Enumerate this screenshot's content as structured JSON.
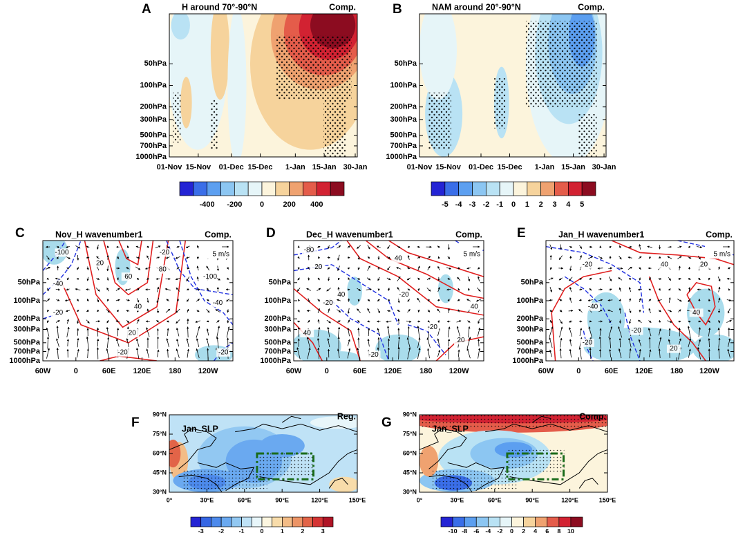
{
  "chart_data": [
    {
      "type": "contour",
      "panel": "A",
      "title": "H around 70°-90°N",
      "tag": "Comp.",
      "xlim": [
        0,
        91
      ],
      "xticks": [
        {
          "value": 0,
          "label": "01-Nov"
        },
        {
          "value": 14,
          "label": "15-Nov"
        },
        {
          "value": 30,
          "label": "01-Dec"
        },
        {
          "value": 44,
          "label": "15-Dec"
        },
        {
          "value": 61,
          "label": "1-Jan"
        },
        {
          "value": 75,
          "label": "15-Jan"
        },
        {
          "value": 90,
          "label": "30-Jan"
        }
      ],
      "ylim": [
        1000,
        10
      ],
      "log_y": true,
      "yticks": [
        {
          "value": 50,
          "label": "50hPa"
        },
        {
          "value": 100,
          "label": "100hPa"
        },
        {
          "value": 200,
          "label": "200hPa"
        },
        {
          "value": 300,
          "label": "300hPa"
        },
        {
          "value": 500,
          "label": "500hPa"
        },
        {
          "value": 700,
          "label": "700hPa"
        },
        {
          "value": 1000,
          "label": "1000hPa"
        }
      ],
      "colorbar": {
        "lim": [
          -600,
          600
        ],
        "ticks": [
          -400,
          -200,
          0,
          200,
          400
        ],
        "colors": [
          "#2424d4",
          "#3a6ee8",
          "#5c9ff0",
          "#8cc6f2",
          "#b9e2f4",
          "#e6f5f8",
          "#fcf4dc",
          "#f6d39c",
          "#efa270",
          "#e45c4a",
          "#d22232",
          "#8c0c20"
        ]
      }
    },
    {
      "type": "contour",
      "panel": "B",
      "title": "NAM around 20°-90°N",
      "tag": "Comp.",
      "xlim": [
        0,
        91
      ],
      "xticks": [
        {
          "value": 0,
          "label": "01-Nov"
        },
        {
          "value": 14,
          "label": "15-Nov"
        },
        {
          "value": 30,
          "label": "01-Dec"
        },
        {
          "value": 44,
          "label": "15-Dec"
        },
        {
          "value": 61,
          "label": "1-Jan"
        },
        {
          "value": 75,
          "label": "15-Jan"
        },
        {
          "value": 90,
          "label": "30-Jan"
        }
      ],
      "ylim": [
        1000,
        10
      ],
      "log_y": true,
      "yticks": [
        {
          "value": 50,
          "label": "50hPa"
        },
        {
          "value": 100,
          "label": "100hPa"
        },
        {
          "value": 200,
          "label": "200hPa"
        },
        {
          "value": 300,
          "label": "300hPa"
        },
        {
          "value": 500,
          "label": "500hPa"
        },
        {
          "value": 700,
          "label": "700hPa"
        },
        {
          "value": 1000,
          "label": "1000hPa"
        }
      ],
      "colorbar": {
        "lim": [
          -6,
          6
        ],
        "ticks": [
          -5,
          -4,
          -3,
          -2,
          -1,
          0,
          1,
          2,
          3,
          4,
          5
        ],
        "colors": [
          "#2424d4",
          "#3a6ee8",
          "#5c9ff0",
          "#8cc6f2",
          "#b9e2f4",
          "#e6f5f8",
          "#fcf4dc",
          "#f6d39c",
          "#efa270",
          "#e45c4a",
          "#d22232",
          "#8c0c20"
        ]
      }
    },
    {
      "type": "vector",
      "panel": "C",
      "title": "Nov_H wavenumber1",
      "tag": "Comp.",
      "ref_vector": "5 m/s",
      "xlim": [
        -60,
        285
      ],
      "xticks": [
        {
          "value": -60,
          "label": "60W"
        },
        0,
        {
          "value": 60,
          "label": "60E"
        },
        {
          "value": 120,
          "label": "120E"
        },
        180,
        {
          "value": 240,
          "label": "120W"
        }
      ],
      "ylim": [
        1000,
        10
      ],
      "log_y": true,
      "yticks": [
        {
          "value": 50,
          "label": "50hPa"
        },
        {
          "value": 100,
          "label": "100hPa"
        },
        {
          "value": 200,
          "label": "200hPa"
        },
        {
          "value": 300,
          "label": "300hPa"
        },
        {
          "value": 500,
          "label": "500hPa"
        },
        {
          "value": 700,
          "label": "700hPa"
        },
        {
          "value": 1000,
          "label": "1000hPa"
        }
      ],
      "shade_color": "#a9dcec",
      "positive_color": "#e02020",
      "negative_color": "#2030e0",
      "contour_labels": [
        -100,
        -40,
        20,
        60,
        80,
        40,
        20,
        -20,
        -20,
        -100,
        -40,
        -20,
        -20
      ]
    },
    {
      "type": "vector",
      "panel": "D",
      "title": "Dec_H wavenumber1",
      "tag": "Comp.",
      "ref_vector": "5 m/s",
      "xlim": [
        -60,
        285
      ],
      "xticks": [
        {
          "value": -60,
          "label": "60W"
        },
        0,
        {
          "value": 60,
          "label": "60E"
        },
        {
          "value": 120,
          "label": "120E"
        },
        180,
        {
          "value": 240,
          "label": "120W"
        }
      ],
      "ylim": [
        1000,
        10
      ],
      "log_y": true,
      "yticks": [
        {
          "value": 50,
          "label": "50hPa"
        },
        {
          "value": 100,
          "label": "100hPa"
        },
        {
          "value": 200,
          "label": "200hPa"
        },
        {
          "value": 300,
          "label": "300hPa"
        },
        {
          "value": 500,
          "label": "500hPa"
        },
        {
          "value": 700,
          "label": "700hPa"
        },
        {
          "value": 1000,
          "label": "1000hPa"
        }
      ],
      "shade_color": "#a9dcec",
      "positive_color": "#e02020",
      "negative_color": "#2030e0",
      "contour_labels": [
        -80,
        20,
        40,
        -20,
        40,
        40,
        -20,
        20,
        40,
        -20,
        -20
      ]
    },
    {
      "type": "vector",
      "panel": "E",
      "title": "Jan_H wavenumber1",
      "tag": "Comp.",
      "ref_vector": "5 m/s",
      "xlim": [
        -60,
        285
      ],
      "xticks": [
        {
          "value": -60,
          "label": "60W"
        },
        0,
        {
          "value": 60,
          "label": "60E"
        },
        {
          "value": 120,
          "label": "120E"
        },
        180,
        {
          "value": 240,
          "label": "120W"
        }
      ],
      "ylim": [
        1000,
        10
      ],
      "log_y": true,
      "yticks": [
        {
          "value": 50,
          "label": "50hPa"
        },
        {
          "value": 100,
          "label": "100hPa"
        },
        {
          "value": 200,
          "label": "200hPa"
        },
        {
          "value": 300,
          "label": "300hPa"
        },
        {
          "value": 500,
          "label": "500hPa"
        },
        {
          "value": 700,
          "label": "700hPa"
        },
        {
          "value": 1000,
          "label": "1000hPa"
        }
      ],
      "shade_color": "#a9dcec",
      "positive_color": "#e02020",
      "negative_color": "#2030e0",
      "contour_labels": [
        -20,
        40,
        20,
        -40,
        40,
        -20,
        20,
        -20
      ]
    },
    {
      "type": "map",
      "panel": "F",
      "title": "Jan_SLP",
      "tag": "Reg.",
      "xlim": [
        0,
        150
      ],
      "xticks": [
        {
          "value": 0,
          "label": "0°"
        },
        {
          "value": 30,
          "label": "30°E"
        },
        {
          "value": 60,
          "label": "60°E"
        },
        {
          "value": 90,
          "label": "90°E"
        },
        {
          "value": 120,
          "label": "120°E"
        },
        {
          "value": 150,
          "label": "150°E"
        }
      ],
      "ylim": [
        30,
        90
      ],
      "yticks": [
        {
          "value": 30,
          "label": "30°N"
        },
        {
          "value": 45,
          "label": "45°N"
        },
        {
          "value": 60,
          "label": "60°N"
        },
        {
          "value": 75,
          "label": "75°N"
        },
        {
          "value": 90,
          "label": "90°N"
        }
      ],
      "box_color": "#1a6b1a",
      "colorbar": {
        "lim": [
          -3.5,
          3.5
        ],
        "ticks": [
          -3,
          -2,
          -1,
          0,
          1,
          2,
          3
        ],
        "colors": [
          "#2424d4",
          "#3566e4",
          "#4d8aec",
          "#6aa9f0",
          "#92c8f2",
          "#bfe2f6",
          "#e8f6fa",
          "#fcf6e0",
          "#f8dcaa",
          "#f3bc86",
          "#ec9466",
          "#e26448",
          "#d43434",
          "#b01426"
        ]
      }
    },
    {
      "type": "map",
      "panel": "G",
      "title": "Jan_SLP",
      "tag": "Comp.",
      "xlim": [
        0,
        150
      ],
      "xticks": [
        {
          "value": 0,
          "label": "0°"
        },
        {
          "value": 30,
          "label": "30°E"
        },
        {
          "value": 60,
          "label": "60°E"
        },
        {
          "value": 90,
          "label": "90°E"
        },
        {
          "value": 120,
          "label": "120°E"
        },
        {
          "value": 150,
          "label": "150°E"
        }
      ],
      "ylim": [
        30,
        90
      ],
      "yticks": [
        {
          "value": 30,
          "label": "30°N"
        },
        {
          "value": 45,
          "label": "45°N"
        },
        {
          "value": 60,
          "label": "60°N"
        },
        {
          "value": 75,
          "label": "75°N"
        },
        {
          "value": 90,
          "label": "90°N"
        }
      ],
      "box_color": "#1a6b1a",
      "colorbar": {
        "lim": [
          -12,
          12
        ],
        "ticks": [
          -10,
          -8,
          -6,
          -4,
          -2,
          0,
          2,
          4,
          6,
          8,
          10
        ],
        "colors": [
          "#2424d4",
          "#3a6ee8",
          "#5c9ff0",
          "#8cc6f2",
          "#b9e2f4",
          "#e6f5f8",
          "#fcf4dc",
          "#f6d39c",
          "#efa270",
          "#e45c4a",
          "#d22232",
          "#8c0c20"
        ]
      }
    }
  ]
}
